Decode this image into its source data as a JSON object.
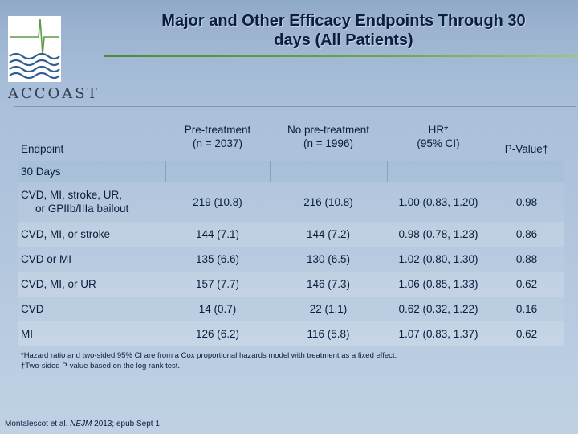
{
  "logo": {
    "text": "ACCOAST"
  },
  "title": {
    "line1": "Major and Other Efficacy Endpoints Through 30",
    "line2": "days (All Patients)"
  },
  "table": {
    "headers": {
      "endpoint": "Endpoint",
      "pre_line1": "Pre-treatment",
      "pre_line2": "(n = 2037)",
      "nopre_line1": "No pre-treatment",
      "nopre_line2": "(n = 1996)",
      "hr_line1": "HR*",
      "hr_line2": "(95% CI)",
      "pvalue": "P-Value†"
    },
    "section": "30 Days",
    "rows": [
      {
        "endpoint_line1": "CVD, MI, stroke, UR,",
        "endpoint_line2": "or GPIIb/IIIa bailout",
        "pre": "219 (10.8)",
        "nopre": "216 (10.8)",
        "hr": "1.00 (0.83, 1.20)",
        "p": "0.98"
      },
      {
        "endpoint_line1": "CVD, MI, or stroke",
        "endpoint_line2": "",
        "pre": "144 (7.1)",
        "nopre": "144 (7.2)",
        "hr": "0.98 (0.78, 1.23)",
        "p": "0.86"
      },
      {
        "endpoint_line1": "CVD or MI",
        "endpoint_line2": "",
        "pre": "135 (6.6)",
        "nopre": "130 (6.5)",
        "hr": "1.02 (0.80, 1.30)",
        "p": "0.88"
      },
      {
        "endpoint_line1": "CVD, MI, or UR",
        "endpoint_line2": "",
        "pre": "157 (7.7)",
        "nopre": "146 (7.3)",
        "hr": "1.06 (0.85, 1.33)",
        "p": "0.62"
      },
      {
        "endpoint_line1": "CVD",
        "endpoint_line2": "",
        "pre": "14 (0.7)",
        "nopre": "22 (1.1)",
        "hr": "0.62 (0.32, 1.22)",
        "p": "0.16"
      },
      {
        "endpoint_line1": "MI",
        "endpoint_line2": "",
        "pre": "126 (6.2)",
        "nopre": "116 (5.8)",
        "hr": "1.07 (0.83, 1.37)",
        "p": "0.62"
      }
    ]
  },
  "footnotes": {
    "line1": "*Hazard ratio and two-sided 95% CI are from a Cox proportional hazards model with treatment as a fixed effect.",
    "line2": "†Two-sided P-value based on the log rank test."
  },
  "citation": {
    "authors": "Montalescot et al. ",
    "journal": "NEJM",
    "rest": " 2013; epub Sept 1"
  },
  "colors": {
    "title": "#0b1e3d",
    "rule": "#6fa64c",
    "background": "#a9bfd9"
  }
}
